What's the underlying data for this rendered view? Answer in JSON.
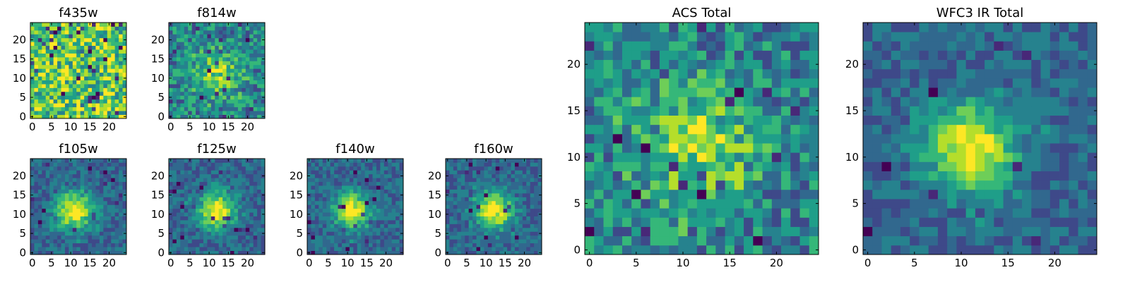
{
  "chart_data": [
    {
      "type": "heatmap",
      "title": "f435w",
      "rows": 25,
      "cols": 25,
      "xticks": [
        0,
        5,
        10,
        15,
        20
      ],
      "yticks": [
        0,
        5,
        10,
        15,
        20
      ],
      "xlim": [
        -0.5,
        24.5
      ],
      "ylim": [
        -0.5,
        24.5
      ],
      "pattern": "noise",
      "peak": [
        12,
        10
      ],
      "colormap": "viridis"
    },
    {
      "type": "heatmap",
      "title": "f814w",
      "rows": 25,
      "cols": 25,
      "xticks": [
        0,
        5,
        10,
        15,
        20
      ],
      "yticks": [
        0,
        5,
        10,
        15,
        20
      ],
      "xlim": [
        -0.5,
        24.5
      ],
      "ylim": [
        -0.5,
        24.5
      ],
      "pattern": "faint-source",
      "peak": [
        12,
        11
      ],
      "colormap": "viridis"
    },
    {
      "type": "heatmap",
      "title": "f105w",
      "rows": 25,
      "cols": 25,
      "xticks": [
        0,
        5,
        10,
        15,
        20
      ],
      "yticks": [
        0,
        5,
        10,
        15,
        20
      ],
      "xlim": [
        -0.5,
        24.5
      ],
      "ylim": [
        -0.5,
        24.5
      ],
      "pattern": "source",
      "peak": [
        11,
        11
      ],
      "colormap": "viridis"
    },
    {
      "type": "heatmap",
      "title": "f125w",
      "rows": 25,
      "cols": 25,
      "xticks": [
        0,
        5,
        10,
        15,
        20
      ],
      "yticks": [
        0,
        5,
        10,
        15,
        20
      ],
      "xlim": [
        -0.5,
        24.5
      ],
      "ylim": [
        -0.5,
        24.5
      ],
      "pattern": "source",
      "peak": [
        12,
        11
      ],
      "colormap": "viridis"
    },
    {
      "type": "heatmap",
      "title": "f140w",
      "rows": 25,
      "cols": 25,
      "xticks": [
        0,
        5,
        10,
        15,
        20
      ],
      "yticks": [
        0,
        5,
        10,
        15,
        20
      ],
      "xlim": [
        -0.5,
        24.5
      ],
      "ylim": [
        -0.5,
        24.5
      ],
      "pattern": "source",
      "peak": [
        11,
        11
      ],
      "colormap": "viridis"
    },
    {
      "type": "heatmap",
      "title": "f160w",
      "rows": 25,
      "cols": 25,
      "xticks": [
        0,
        5,
        10,
        15,
        20
      ],
      "yticks": [
        0,
        5,
        10,
        15,
        20
      ],
      "xlim": [
        -0.5,
        24.5
      ],
      "ylim": [
        -0.5,
        24.5
      ],
      "pattern": "source",
      "peak": [
        12,
        11
      ],
      "colormap": "viridis"
    },
    {
      "type": "heatmap",
      "title": "ACS Total",
      "rows": 25,
      "cols": 25,
      "xticks": [
        0,
        5,
        10,
        15,
        20
      ],
      "yticks": [
        0,
        5,
        10,
        15,
        20
      ],
      "xlim": [
        -0.5,
        24.5
      ],
      "ylim": [
        -0.5,
        24.5
      ],
      "pattern": "faint-source",
      "peak": [
        12,
        11
      ],
      "colormap": "viridis"
    },
    {
      "type": "heatmap",
      "title": "WFC3 IR Total",
      "rows": 25,
      "cols": 25,
      "xticks": [
        0,
        5,
        10,
        15,
        20
      ],
      "yticks": [
        0,
        5,
        10,
        15,
        20
      ],
      "xlim": [
        -0.5,
        24.5
      ],
      "ylim": [
        -0.5,
        24.5
      ],
      "pattern": "source",
      "peak": [
        11,
        11
      ],
      "colormap": "viridis"
    }
  ]
}
